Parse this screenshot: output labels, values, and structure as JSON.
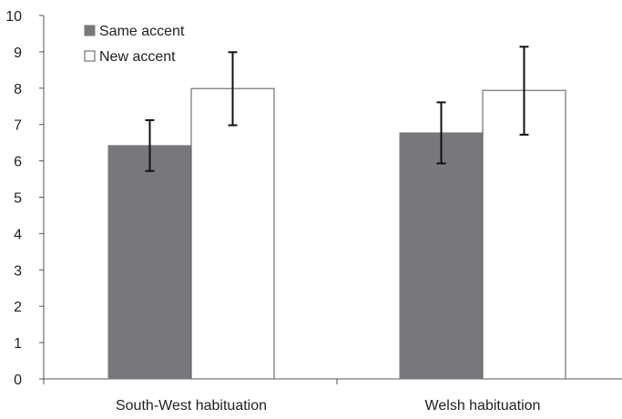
{
  "chart_data": {
    "type": "bar",
    "title": "",
    "xlabel": "",
    "ylabel": "",
    "categories": [
      "South-West habituation",
      "Welsh habituation"
    ],
    "series": [
      {
        "name": "Same accent",
        "values": [
          6.42,
          6.77
        ],
        "error_low": [
          5.72,
          5.93
        ],
        "error_high": [
          7.12,
          7.61
        ],
        "color": "#77787b"
      },
      {
        "name": "New accent",
        "values": [
          7.99,
          7.94
        ],
        "error_low": [
          6.98,
          6.72
        ],
        "error_high": [
          8.99,
          9.14
        ],
        "color": "#ffffff"
      }
    ],
    "ylim": [
      0,
      10
    ],
    "yticks": [
      "0",
      "1",
      "2",
      "3",
      "4",
      "5",
      "6",
      "7",
      "8",
      "9",
      "10"
    ],
    "grid": false,
    "legend_position": "top-left"
  }
}
